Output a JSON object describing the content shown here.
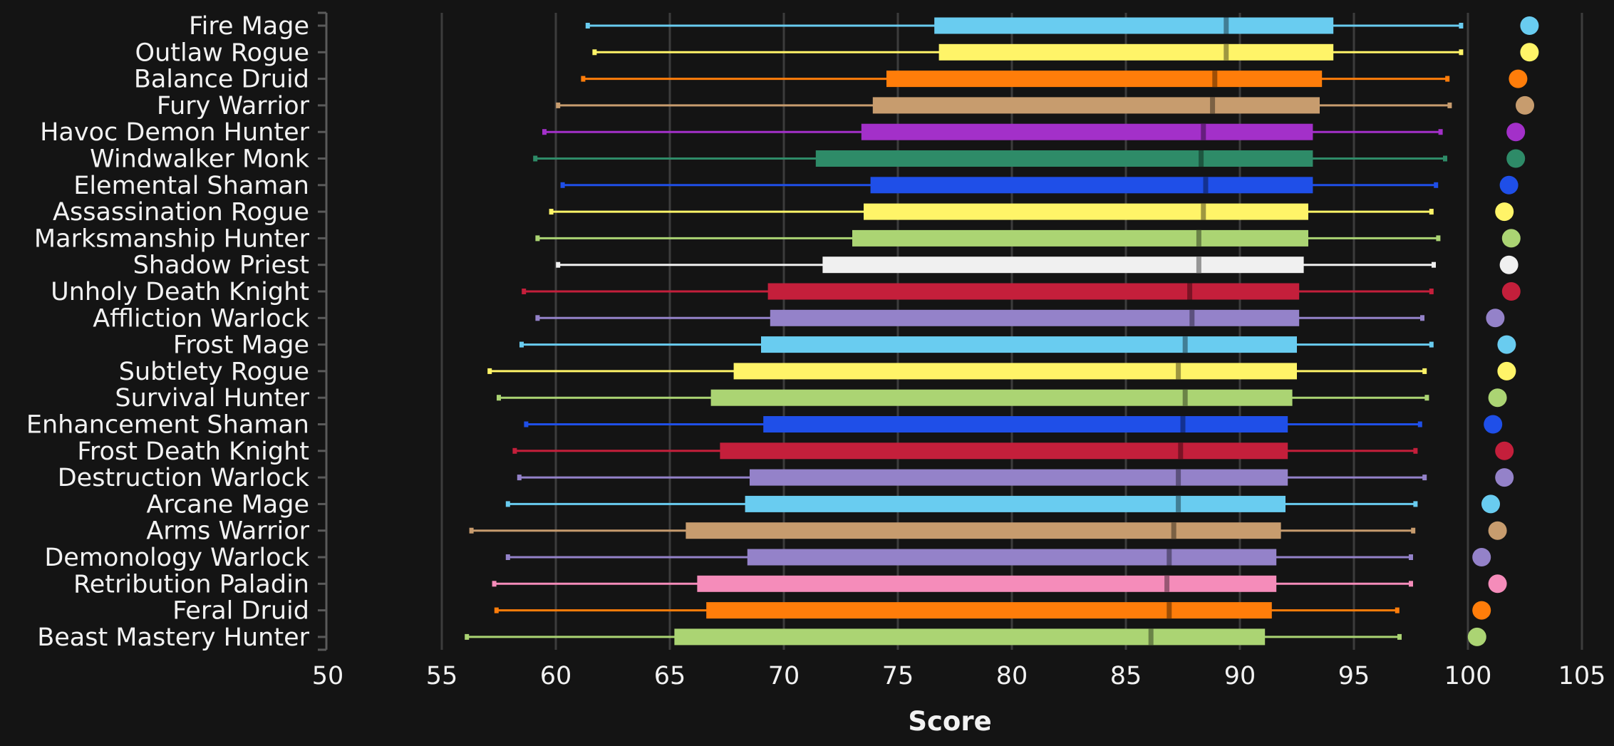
{
  "chart_data": {
    "type": "boxplot",
    "title": "",
    "xlabel": "Score",
    "ylabel": "",
    "xlim": [
      50,
      105
    ],
    "xticks": [
      50,
      55,
      60,
      65,
      70,
      75,
      80,
      85,
      90,
      95,
      100,
      105
    ],
    "grid": "vertical",
    "legend": "none",
    "background": "#141414",
    "series": [
      {
        "name": "Fire Mage",
        "color": "#69CCF0",
        "min": 61.4,
        "q1": 76.6,
        "median": 89.4,
        "q3": 94.1,
        "max": 99.7,
        "top": 102.7
      },
      {
        "name": "Outlaw Rogue",
        "color": "#FFF468",
        "min": 61.7,
        "q1": 76.8,
        "median": 89.4,
        "q3": 94.1,
        "max": 99.7,
        "top": 102.7
      },
      {
        "name": "Balance Druid",
        "color": "#FF7D0A",
        "min": 61.2,
        "q1": 74.5,
        "median": 88.9,
        "q3": 93.6,
        "max": 99.1,
        "top": 102.2
      },
      {
        "name": "Fury Warrior",
        "color": "#C79C6E",
        "min": 60.1,
        "q1": 73.9,
        "median": 88.8,
        "q3": 93.5,
        "max": 99.2,
        "top": 102.5
      },
      {
        "name": "Havoc Demon Hunter",
        "color": "#A330C9",
        "min": 59.5,
        "q1": 73.4,
        "median": 88.4,
        "q3": 93.2,
        "max": 98.8,
        "top": 102.1
      },
      {
        "name": "Windwalker Monk",
        "color": "#2E8B68",
        "min": 59.1,
        "q1": 71.4,
        "median": 88.3,
        "q3": 93.2,
        "max": 99.0,
        "top": 102.1
      },
      {
        "name": "Elemental Shaman",
        "color": "#1F4FE8",
        "min": 60.3,
        "q1": 73.8,
        "median": 88.5,
        "q3": 93.2,
        "max": 98.6,
        "top": 101.8
      },
      {
        "name": "Assassination Rogue",
        "color": "#FFF468",
        "min": 59.8,
        "q1": 73.5,
        "median": 88.4,
        "q3": 93.0,
        "max": 98.4,
        "top": 101.6
      },
      {
        "name": "Marksmanship Hunter",
        "color": "#ABD473",
        "min": 59.2,
        "q1": 73.0,
        "median": 88.2,
        "q3": 93.0,
        "max": 98.7,
        "top": 101.9
      },
      {
        "name": "Shadow Priest",
        "color": "#F0F0F0",
        "min": 60.1,
        "q1": 71.7,
        "median": 88.2,
        "q3": 92.8,
        "max": 98.5,
        "top": 101.8
      },
      {
        "name": "Unholy Death Knight",
        "color": "#C41F3B",
        "min": 58.6,
        "q1": 69.3,
        "median": 87.8,
        "q3": 92.6,
        "max": 98.4,
        "top": 101.9
      },
      {
        "name": "Affliction Warlock",
        "color": "#9482C9",
        "min": 59.2,
        "q1": 69.4,
        "median": 87.9,
        "q3": 92.6,
        "max": 98.0,
        "top": 101.2
      },
      {
        "name": "Frost Mage",
        "color": "#69CCF0",
        "min": 58.5,
        "q1": 69.0,
        "median": 87.6,
        "q3": 92.5,
        "max": 98.4,
        "top": 101.7
      },
      {
        "name": "Subtlety Rogue",
        "color": "#FFF468",
        "min": 57.1,
        "q1": 67.8,
        "median": 87.3,
        "q3": 92.5,
        "max": 98.1,
        "top": 101.7
      },
      {
        "name": "Survival Hunter",
        "color": "#ABD473",
        "min": 57.5,
        "q1": 66.8,
        "median": 87.6,
        "q3": 92.3,
        "max": 98.2,
        "top": 101.3
      },
      {
        "name": "Enhancement Shaman",
        "color": "#1F4FE8",
        "min": 58.7,
        "q1": 69.1,
        "median": 87.5,
        "q3": 92.1,
        "max": 97.9,
        "top": 101.1
      },
      {
        "name": "Frost Death Knight",
        "color": "#C41F3B",
        "min": 58.2,
        "q1": 67.2,
        "median": 87.4,
        "q3": 92.1,
        "max": 97.7,
        "top": 101.6
      },
      {
        "name": "Destruction Warlock",
        "color": "#9482C9",
        "min": 58.4,
        "q1": 68.5,
        "median": 87.3,
        "q3": 92.1,
        "max": 98.1,
        "top": 101.6
      },
      {
        "name": "Arcane Mage",
        "color": "#69CCF0",
        "min": 57.9,
        "q1": 68.3,
        "median": 87.3,
        "q3": 92.0,
        "max": 97.7,
        "top": 101.0
      },
      {
        "name": "Arms Warrior",
        "color": "#C79C6E",
        "min": 56.3,
        "q1": 65.7,
        "median": 87.1,
        "q3": 91.8,
        "max": 97.6,
        "top": 101.3
      },
      {
        "name": "Demonology Warlock",
        "color": "#9482C9",
        "min": 57.9,
        "q1": 68.4,
        "median": 86.9,
        "q3": 91.6,
        "max": 97.5,
        "top": 100.6
      },
      {
        "name": "Retribution Paladin",
        "color": "#F58CBA",
        "min": 57.3,
        "q1": 66.2,
        "median": 86.8,
        "q3": 91.6,
        "max": 97.5,
        "top": 101.3
      },
      {
        "name": "Feral Druid",
        "color": "#FF7D0A",
        "min": 57.4,
        "q1": 66.6,
        "median": 86.9,
        "q3": 91.4,
        "max": 96.9,
        "top": 100.6
      },
      {
        "name": "Beast Mastery Hunter",
        "color": "#ABD473",
        "min": 56.1,
        "q1": 65.2,
        "median": 86.1,
        "q3": 91.1,
        "max": 97.0,
        "top": 100.4
      }
    ]
  }
}
